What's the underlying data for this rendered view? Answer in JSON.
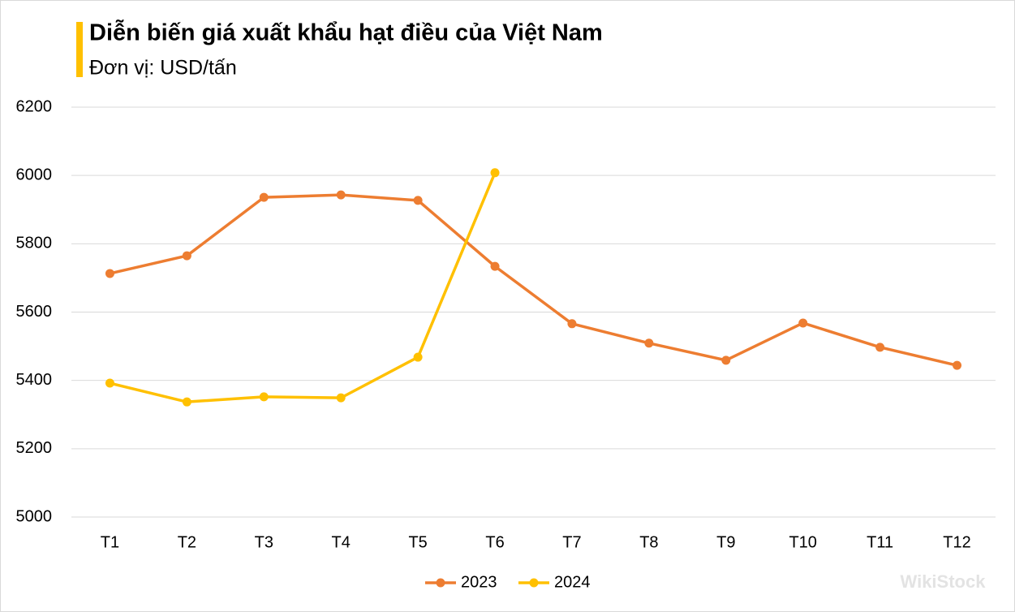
{
  "chart_data": {
    "type": "line",
    "title": "Diễn biến giá xuất khẩu hạt điều của Việt Nam",
    "subtitle": "Đơn vị: USD/tấn",
    "categories": [
      "T1",
      "T2",
      "T3",
      "T4",
      "T5",
      "T6",
      "T7",
      "T8",
      "T9",
      "T10",
      "T11",
      "T12"
    ],
    "series": [
      {
        "name": "2023",
        "color": "#ed7d31",
        "values": [
          5713,
          5765,
          5936,
          5943,
          5927,
          5734,
          5566,
          5509,
          5459,
          5568,
          5497,
          5444
        ]
      },
      {
        "name": "2024",
        "color": "#ffc000",
        "values": [
          5392,
          5337,
          5352,
          5349,
          5468,
          6008,
          null,
          null,
          null,
          null,
          null,
          null
        ]
      }
    ],
    "ylim": [
      5000,
      6200
    ],
    "yticks": [
      5000,
      5200,
      5400,
      5600,
      5800,
      6000,
      6200
    ],
    "grid": true,
    "legend": "bottom"
  },
  "watermark": "WikiStock"
}
